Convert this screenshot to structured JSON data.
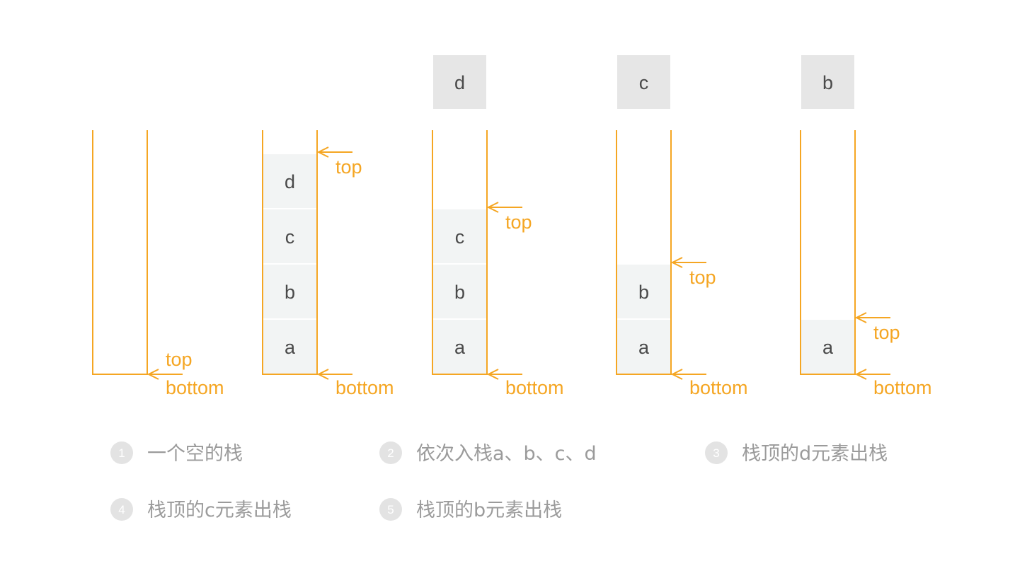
{
  "colors": {
    "accent": "#F5A623",
    "cell_fill": "#F2F4F4",
    "popped_fill": "#E6E6E6",
    "cell_text": "#4a4a4a",
    "caption_text": "#9B9B9B",
    "badge_fill": "#E3E3E3"
  },
  "labels": {
    "top": "top",
    "bottom": "bottom"
  },
  "stacks": [
    {
      "id": "stack-1",
      "items": [],
      "popped": null
    },
    {
      "id": "stack-2",
      "items": [
        "a",
        "b",
        "c",
        "d"
      ],
      "popped": null
    },
    {
      "id": "stack-3",
      "items": [
        "a",
        "b",
        "c"
      ],
      "popped": "d"
    },
    {
      "id": "stack-4",
      "items": [
        "a",
        "b"
      ],
      "popped": "c"
    },
    {
      "id": "stack-5",
      "items": [
        "a"
      ],
      "popped": "b"
    }
  ],
  "captions": [
    {
      "num": "1",
      "text": "一个空的栈"
    },
    {
      "num": "2",
      "text": "依次入栈a、b、c、d"
    },
    {
      "num": "3",
      "text": "栈顶的d元素出栈"
    },
    {
      "num": "4",
      "text": "栈顶的c元素出栈"
    },
    {
      "num": "5",
      "text": "栈顶的b元素出栈"
    }
  ]
}
